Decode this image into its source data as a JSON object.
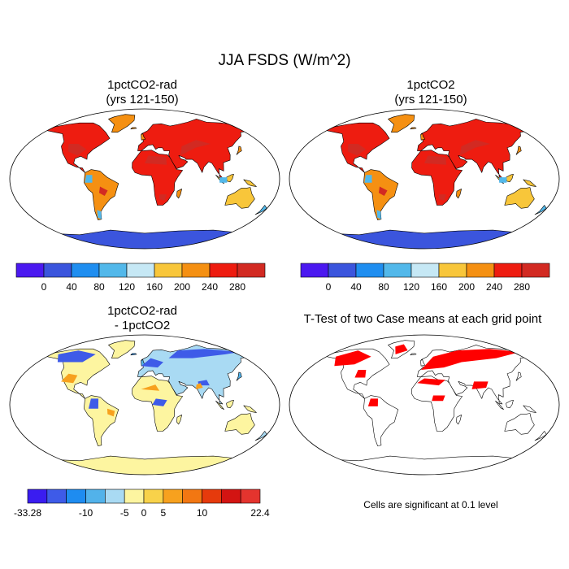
{
  "title": "JJA FSDS (W/m^2)",
  "panels": [
    {
      "title_line1": "1pctCO2-rad",
      "title_line2": "(yrs 121-150)"
    },
    {
      "title_line1": "1pctCO2",
      "title_line2": "(yrs 121-150)"
    },
    {
      "title_line1": "1pctCO2-rad",
      "title_line2": "- 1pctCO2"
    },
    {
      "title_line1": "T-Test of two Case means at each grid point",
      "title_line2": ""
    }
  ],
  "colorbar_abs": {
    "labels": [
      "0",
      "40",
      "80",
      "120",
      "160",
      "200",
      "240",
      "280"
    ],
    "colors": [
      "#4b19f0",
      "#3b55dd",
      "#1f8ef0",
      "#52b8ea",
      "#c6e8f5",
      "#f8c63a",
      "#f59012",
      "#ee1c10",
      "#d22a22"
    ]
  },
  "colorbar_diff": {
    "labels": [
      "-33.28",
      "-10",
      "-5",
      "0",
      "5",
      "10",
      "22.4"
    ],
    "colors": [
      "#3a1cf0",
      "#3e5be8",
      "#1e8cf0",
      "#52b2ea",
      "#a9daf3",
      "#fdf5a0",
      "#f8d24a",
      "#f7a11e",
      "#f27712",
      "#e63a0c",
      "#d31412",
      "#e4342e"
    ]
  },
  "significance_note": "Cells are significant at 0.1 level"
}
